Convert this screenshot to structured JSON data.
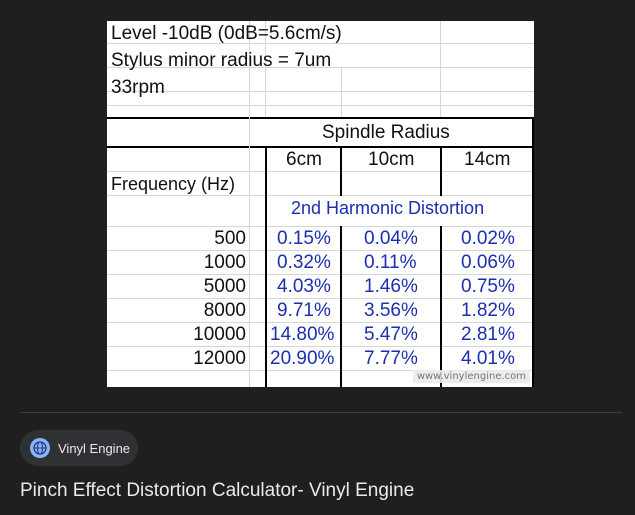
{
  "table": {
    "info_lines": [
      "Level -10dB (0dB=5.6cm/s)",
      "Stylus minor radius = 7um",
      "33rpm"
    ],
    "spindle_header": "Spindle Radius",
    "radii": [
      "6cm",
      "10cm",
      "14cm"
    ],
    "freq_header": "Frequency (Hz)",
    "distortion_header": "2nd Harmonic Distortion",
    "rows": [
      {
        "freq": "500",
        "values": [
          "0.15%",
          "0.04%",
          "0.02%"
        ]
      },
      {
        "freq": "1000",
        "values": [
          "0.32%",
          "0.11%",
          "0.06%"
        ]
      },
      {
        "freq": "5000",
        "values": [
          "4.03%",
          "1.46%",
          "0.75%"
        ]
      },
      {
        "freq": "8000",
        "values": [
          "9.71%",
          "3.56%",
          "1.82%"
        ]
      },
      {
        "freq": "10000",
        "values": [
          "14.80%",
          "5.47%",
          "2.81%"
        ]
      },
      {
        "freq": "12000",
        "values": [
          "20.90%",
          "7.77%",
          "4.01%"
        ]
      }
    ],
    "watermark": "www.vinylengine.com"
  },
  "source": {
    "name": "Vinyl Engine",
    "icon": "globe-icon"
  },
  "result": {
    "title": "Pinch Effect Distortion Calculator- Vinyl Engine"
  },
  "colors": {
    "background": "#1f1f1f",
    "chip": "#303134",
    "table_value_blue": "#1b2fb0"
  }
}
